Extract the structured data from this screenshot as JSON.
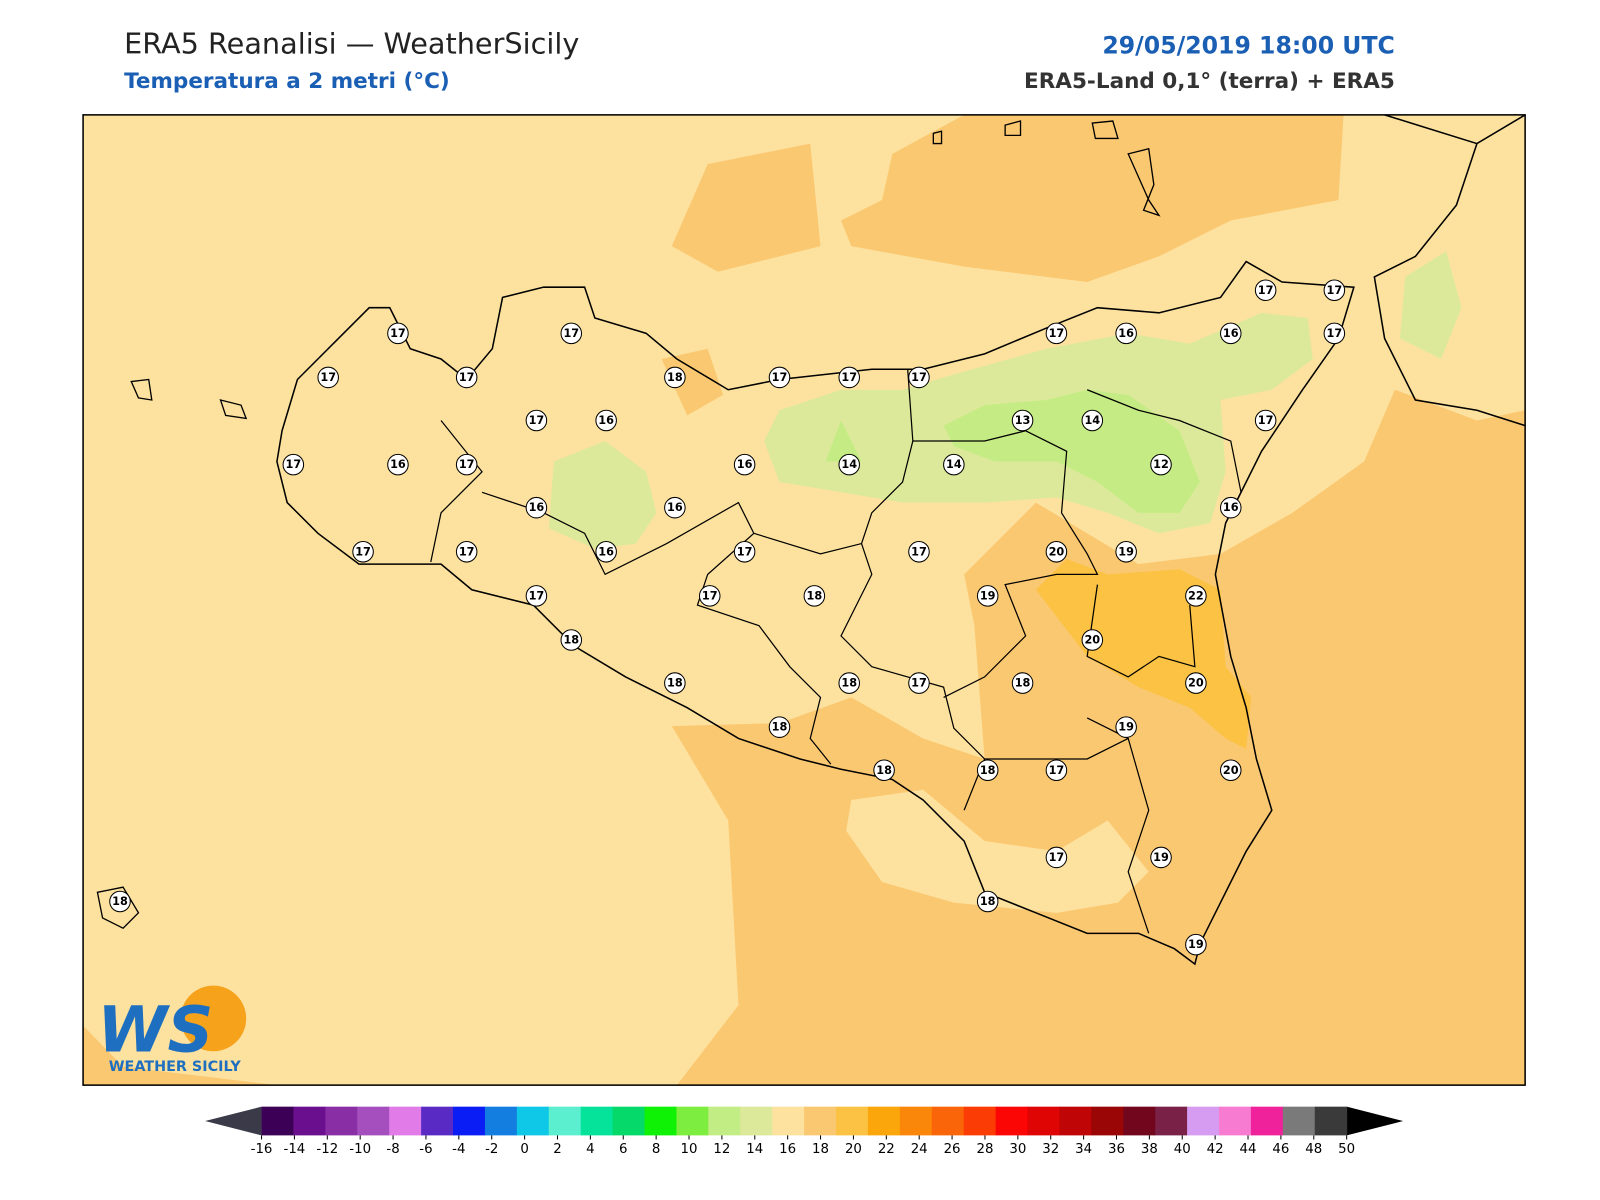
{
  "header": {
    "title": "ERA5 Reanalisi — WeatherSicily",
    "subtitle": "Temperatura a 2 metri (°C)",
    "datetime": "29/05/2019 18:00 UTC",
    "source": "ERA5-Land 0,1° (terra) + ERA5"
  },
  "logo": {
    "mark": "WS",
    "text": "WEATHER SICILY"
  },
  "stations": [
    17,
    17,
    17,
    17,
    18,
    17,
    17,
    17,
    17,
    16,
    16,
    17,
    17,
    17,
    17,
    16,
    13,
    14,
    17,
    17,
    16,
    17,
    16,
    14,
    14,
    12,
    16,
    16,
    16,
    17,
    17,
    16,
    17,
    17,
    20,
    19,
    17,
    17,
    18,
    19,
    22,
    18,
    20,
    18,
    18,
    17,
    18,
    20,
    18,
    19,
    18,
    18,
    17,
    20,
    17,
    19,
    18,
    18,
    19
  ],
  "colorbar": {
    "ticks": [
      -16,
      -14,
      -12,
      -10,
      -8,
      -6,
      -4,
      -2,
      0,
      2,
      4,
      6,
      8,
      10,
      12,
      14,
      16,
      18,
      20,
      22,
      24,
      26,
      28,
      30,
      32,
      34,
      36,
      38,
      40,
      42,
      44,
      46,
      48,
      50
    ],
    "colors": [
      "#3d0057",
      "#6a0f8e",
      "#8a2ea6",
      "#a54fbf",
      "#e07be8",
      "#5a2bc4",
      "#0a1df5",
      "#137ee0",
      "#0fc7e6",
      "#5cefcf",
      "#05e39a",
      "#05d96a",
      "#0ff205",
      "#7ded3f",
      "#c2ed84",
      "#dde99a",
      "#fde29f",
      "#fbc872",
      "#fbc244",
      "#fba60a",
      "#fb870a",
      "#fb650a",
      "#fb3c05",
      "#fb0505",
      "#e00505",
      "#bf0505",
      "#9a0505",
      "#72061c",
      "#7a2147",
      "#d59cf2",
      "#f77bd0",
      "#f0229b",
      "#7a7a7a",
      "#3a3a3a"
    ],
    "under_color": "#3a3a48",
    "over_color": "#000000"
  }
}
